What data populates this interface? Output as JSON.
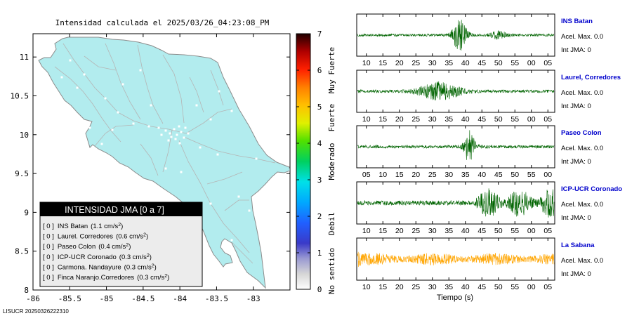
{
  "map": {
    "title": "Intensidad calculada el 2025/03/26_04:23:08_PM",
    "footer_id": "LISUCR 20250326222310",
    "x_ticks": [
      "-86",
      "-85.5",
      "-85",
      "-84.5",
      "-84",
      "-83.5",
      "-83"
    ],
    "y_ticks": [
      "11",
      "10.5",
      "10",
      "9.5",
      "9",
      "8.5",
      "8"
    ],
    "colors": {
      "land": "#b2ecee",
      "coast": "#8c8c8c",
      "roads": "#b5b5b5",
      "towns": "#ffffff"
    }
  },
  "legend": {
    "title": "INTENSIDAD JMA [0 a 7]",
    "items": [
      {
        "intensity": "[ 0 ]",
        "station": "INS Batan",
        "accel": "(1.1 cm/s",
        "sup": "2",
        "close": ")"
      },
      {
        "intensity": "[ 0 ]",
        "station": "Laurel. Corredores",
        "accel": "(0.6 cm/s",
        "sup": "2",
        "close": ")"
      },
      {
        "intensity": "[ 0 ]",
        "station": "Paseo Colon",
        "accel": "(0.4 cm/s",
        "sup": "2",
        "close": ")"
      },
      {
        "intensity": "[ 0 ]",
        "station": "ICP-UCR Coronado",
        "accel": "(0.3 cm/s",
        "sup": "2",
        "close": ")"
      },
      {
        "intensity": "[ 0 ]",
        "station": "Carmona. Nandayure",
        "accel": "(0.3 cm/s",
        "sup": "2",
        "close": ")"
      },
      {
        "intensity": "[ 0 ]",
        "station": "Finca Naranjo.Corredores",
        "accel": "(0.3 cm/s",
        "sup": "2",
        "close": ")"
      }
    ]
  },
  "colorbar": {
    "ticks": [
      "7",
      "6",
      "5",
      "4",
      "3",
      "2",
      "1",
      "0"
    ],
    "labels": [
      "Muy Fuerte",
      "Fuerte",
      "Moderado",
      "Debil",
      "No sentido"
    ]
  },
  "seismograms": {
    "xlabel": "Tiempo (s)",
    "traces": [
      {
        "name": "INS Batan",
        "accel_text": "Acel. Max. 0.0",
        "int_text": "Int JMA: 0",
        "color": "#006400",
        "ticks": [
          "10",
          "15",
          "20",
          "25",
          "30",
          "35",
          "40",
          "45",
          "50",
          "55",
          "00",
          "05"
        ],
        "burst": 0.52,
        "level": 0.9
      },
      {
        "name": "Laurel, Corredores",
        "accel_text": "Acel. Max. 0.0",
        "int_text": "Int JMA: 0",
        "color": "#006400",
        "ticks": [
          "10",
          "15",
          "20",
          "25",
          "30",
          "35",
          "40",
          "45",
          "50",
          "55",
          "00",
          "05"
        ],
        "burst": 0.42,
        "level": 0.75
      },
      {
        "name": "Paseo Colon",
        "accel_text": "Acel. Max. 0.0",
        "int_text": "Int JMA: 0",
        "color": "#006400",
        "ticks": [
          "05",
          "10",
          "15",
          "20",
          "25",
          "30",
          "35",
          "40",
          "45",
          "50",
          "55",
          "00"
        ],
        "burst": 0.57,
        "level": 0.95
      },
      {
        "name": "ICP-UCR Coronado",
        "accel_text": "Acel. Max. 0.0",
        "int_text": "Int JMA: 0",
        "color": "#006400",
        "ticks": [
          "10",
          "15",
          "20",
          "25",
          "30",
          "35",
          "40",
          "45",
          "50",
          "55",
          "00",
          "05"
        ],
        "burst": 0.78,
        "level": 0.9
      },
      {
        "name": "La Sabana",
        "accel_text": "Acel. Max. 0.0",
        "int_text": "Int JMA: 0",
        "color": "#ffa500",
        "ticks": [
          "10",
          "15",
          "20",
          "25",
          "30",
          "35",
          "40",
          "45",
          "50",
          "55",
          "00",
          "05"
        ],
        "burst": 0.0,
        "level": 0.55
      }
    ]
  },
  "chart_data": [
    {
      "type": "map",
      "title": "Intensidad calculada el 2025/03/26_04:23:08_PM",
      "xlim": [
        -86,
        -82.5
      ],
      "ylim": [
        8,
        11.3
      ],
      "x_ticks": [
        -86,
        -85.5,
        -85,
        -84.5,
        -84,
        -83.5,
        -83
      ],
      "y_ticks": [
        11,
        10.5,
        10,
        9.5,
        9,
        8.5,
        8
      ],
      "legend_placement": "bottom-left"
    },
    {
      "type": "colorbar",
      "range": [
        0,
        7
      ],
      "ticks": [
        0,
        1,
        2,
        3,
        4,
        5,
        6,
        7
      ]
    },
    {
      "type": "line",
      "xlabel": "Tiempo (s)",
      "series": [
        {
          "name": "INS Batan"
        },
        {
          "name": "Laurel, Corredores"
        },
        {
          "name": "Paseo Colon"
        },
        {
          "name": "ICP-UCR Coronado"
        },
        {
          "name": "La Sabana"
        }
      ]
    }
  ]
}
